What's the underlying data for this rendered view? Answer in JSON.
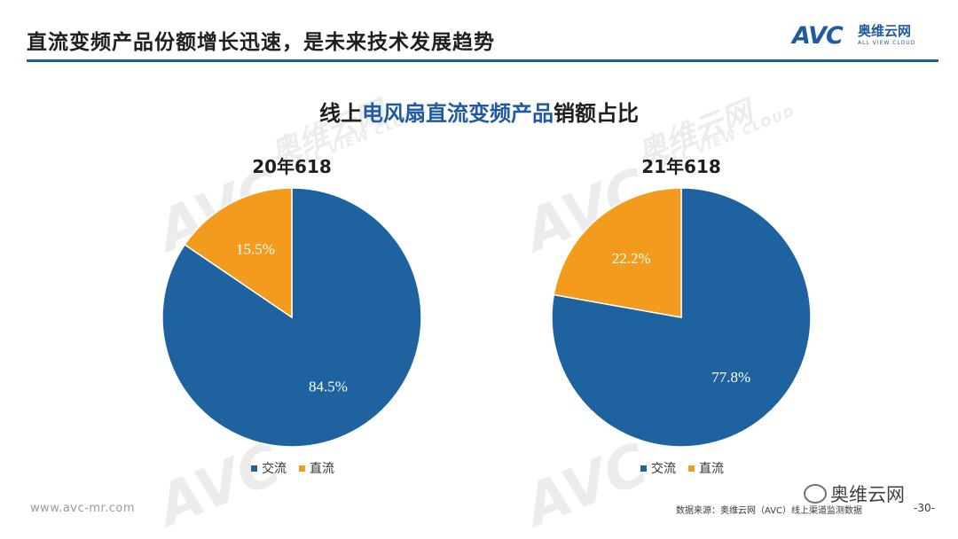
{
  "header": {
    "title": "直流变频产品份额增长迅速，是未来技术发展趋势",
    "logo_mark": "AVC",
    "logo_cn": "奥维云网",
    "logo_en": "ALL VIEW CLOUD"
  },
  "watermark": {
    "mark": "AVC",
    "cn": "奥维云网",
    "en": "ALL VIEW CLOUD"
  },
  "chart_title": {
    "prefix": "线上",
    "highlight": "电风扇直流变频产品",
    "suffix": "销额占比"
  },
  "colors": {
    "ac": "#1f62a0",
    "dc": "#f29b1d",
    "accent": "#1f5aa3"
  },
  "chart_data": [
    {
      "type": "pie",
      "title": "20年618",
      "series": [
        {
          "name": "交流",
          "value": 84.5,
          "label": "84.5%"
        },
        {
          "name": "直流",
          "value": 15.5,
          "label": "15.5%"
        }
      ],
      "legend": [
        "交流",
        "直流"
      ],
      "legend_position": "bottom"
    },
    {
      "type": "pie",
      "title": "21年618",
      "series": [
        {
          "name": "交流",
          "value": 77.8,
          "label": "77.8%"
        },
        {
          "name": "直流",
          "value": 22.2,
          "label": "22.2%"
        }
      ],
      "legend": [
        "交流",
        "直流"
      ],
      "legend_position": "bottom"
    }
  ],
  "footer": {
    "url": "www.avc-mr.com",
    "source": "数据来源：奥维云网（AVC）线上渠道监测数据",
    "page": "-30-",
    "wechat": "奥维云网"
  }
}
